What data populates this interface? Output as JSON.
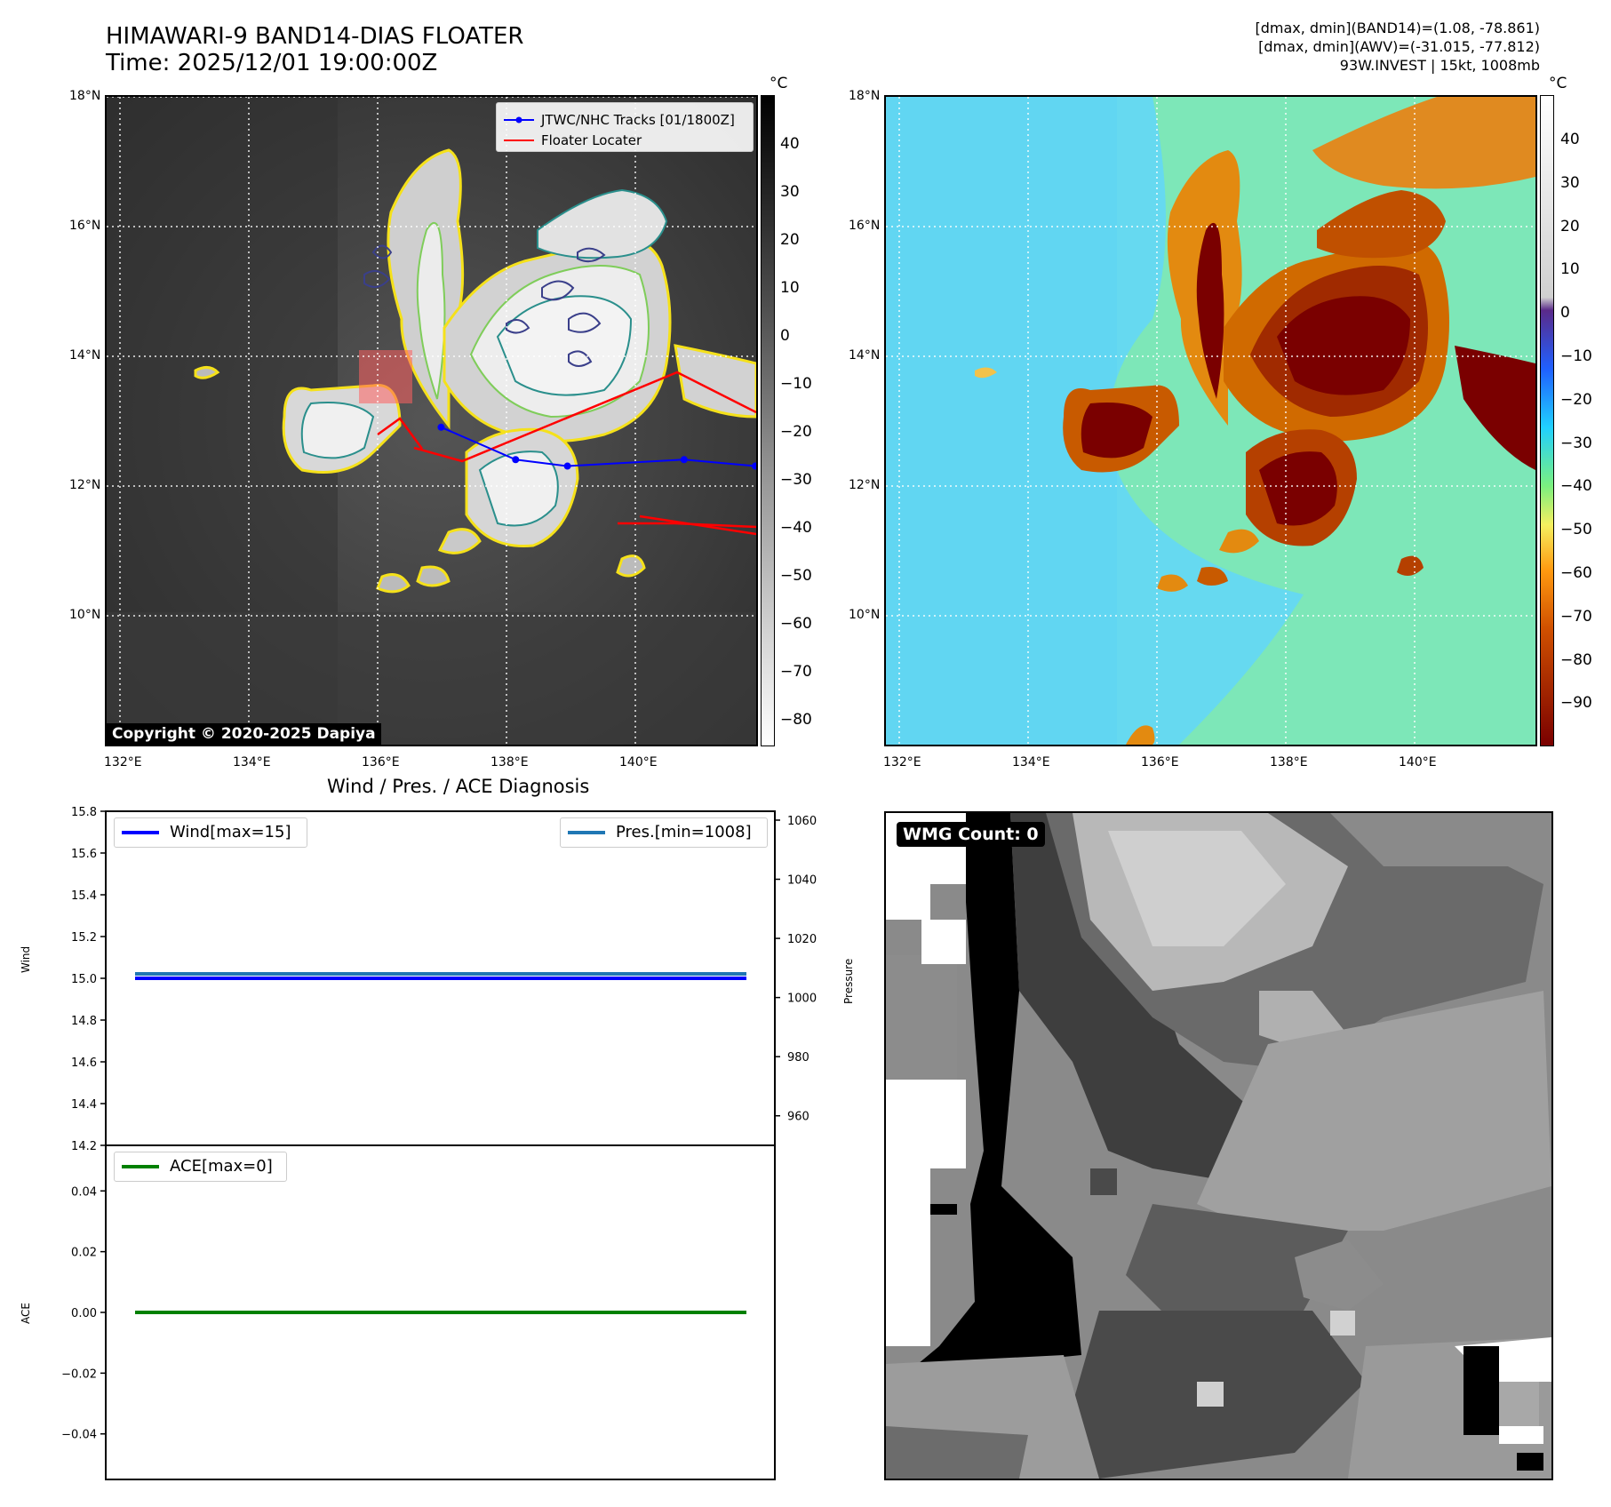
{
  "header": {
    "title_line1": "HIMAWARI-9 BAND14-DIAS FLOATER",
    "title_line2": "Time: 2025/12/01 19:00:00Z",
    "info_line1": "[dmax, dmin](BAND14)=(1.08, -78.861)",
    "info_line2": "[dmax, dmin](AWV)=(-31.015, -77.812)",
    "info_line3": "93W.INVEST | 15kt, 1008mb"
  },
  "colors": {
    "ir_cloud": "#e6e6e6",
    "ir_background": "#3a3a3a",
    "contour_yellow": "#f5e11a",
    "contour_green": "#7fcd5a",
    "contour_teal": "#2a8f8c",
    "contour_navy": "#3a3f8a",
    "track": "#0000ff",
    "floater": "#ff0000",
    "wind_line": "#0000ff",
    "pres_line": "#1f77b4",
    "ace_line": "#008000"
  },
  "map_left": {
    "unit_label": "°C",
    "lat_ticks": [
      "18°N",
      "16°N",
      "14°N",
      "12°N",
      "10°N"
    ],
    "lon_ticks": [
      "132°E",
      "134°E",
      "136°E",
      "138°E",
      "140°E"
    ],
    "colorbar_ticks": [
      "40",
      "30",
      "20",
      "10",
      "0",
      "−10",
      "−20",
      "−30",
      "−40",
      "−50",
      "−60",
      "−70",
      "−80"
    ],
    "legend": [
      {
        "label": "JTWC/NHC Tracks [01/1800Z]",
        "color": "#0000ff",
        "marker": true
      },
      {
        "label": "Floater Locater",
        "color": "#ff0000",
        "marker": false
      }
    ],
    "copyright": "Copyright © 2020-2025 Dapiya",
    "track_points": [
      {
        "lon": 136.95,
        "lat": 12.9
      },
      {
        "lon": 138.1,
        "lat": 12.4
      },
      {
        "lon": 138.9,
        "lat": 12.3
      },
      {
        "lon": 140.7,
        "lat": 12.4
      },
      {
        "lon": 141.8,
        "lat": 12.3
      }
    ]
  },
  "map_right": {
    "unit_label": "°C",
    "lat_ticks": [
      "18°N",
      "16°N",
      "14°N",
      "12°N",
      "10°N"
    ],
    "lon_ticks": [
      "132°E",
      "134°E",
      "136°E",
      "138°E",
      "140°E"
    ],
    "colorbar_ticks": [
      "40",
      "30",
      "20",
      "10",
      "0",
      "−10",
      "−20",
      "−30",
      "−40",
      "−50",
      "−60",
      "−70",
      "−80",
      "−90"
    ]
  },
  "diagnosis": {
    "title": "Wind / Pres. / ACE Diagnosis",
    "wind_axis_label": "Wind",
    "pres_axis_label": "Pressure",
    "ace_axis_label": "ACE",
    "wind_ticks": [
      "15.8",
      "15.6",
      "15.4",
      "15.2",
      "15.0",
      "14.8",
      "14.6",
      "14.4",
      "14.2"
    ],
    "pres_ticks": [
      "1060",
      "1040",
      "1020",
      "1000",
      "980",
      "960"
    ],
    "ace_ticks": [
      "0.04",
      "0.02",
      "0.00",
      "−0.02",
      "−0.04"
    ],
    "wind_legend": "Wind[max=15]",
    "pres_legend": "Pres.[min=1008]",
    "ace_legend": "ACE[max=0]"
  },
  "wmg": {
    "label": "WMG Count: 0"
  },
  "chart_data": [
    {
      "type": "line",
      "title": "Wind / Pres. / ACE Diagnosis",
      "ylabel": "Wind",
      "ylim": [
        14.2,
        15.8
      ],
      "series": [
        {
          "name": "Wind[max=15]",
          "values": [
            15.0,
            15.0
          ]
        }
      ]
    },
    {
      "type": "line",
      "ylabel": "Pressure",
      "ylim": [
        950,
        1063
      ],
      "series": [
        {
          "name": "Pres.[min=1008]",
          "values": [
            1008,
            1008
          ]
        }
      ]
    },
    {
      "type": "line",
      "ylabel": "ACE",
      "ylim": [
        -0.055,
        0.055
      ],
      "series": [
        {
          "name": "ACE[max=0]",
          "values": [
            0,
            0
          ]
        }
      ]
    }
  ]
}
